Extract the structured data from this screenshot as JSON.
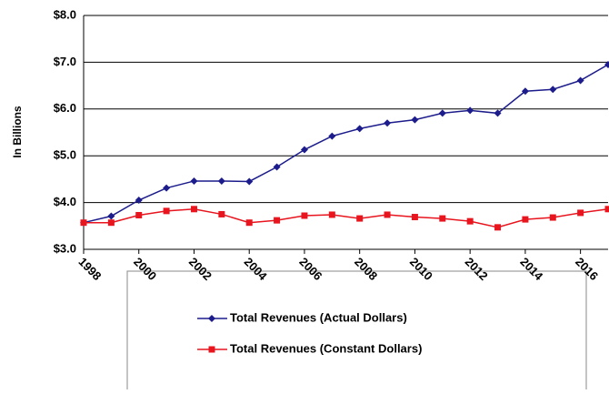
{
  "chart_data": {
    "type": "line",
    "y_label": "In Billions",
    "x": [
      1998,
      1999,
      2000,
      2001,
      2002,
      2003,
      2004,
      2005,
      2006,
      2007,
      2008,
      2009,
      2010,
      2011,
      2012,
      2013,
      2014,
      2015,
      2016,
      2017
    ],
    "xlim": [
      1998,
      2017
    ],
    "xticks": [
      1998,
      2000,
      2002,
      2004,
      2006,
      2008,
      2010,
      2012,
      2014,
      2016
    ],
    "ylim": [
      3,
      8
    ],
    "yticks": [
      {
        "value": 3,
        "label": "$3.0"
      },
      {
        "value": 4,
        "label": "$4.0"
      },
      {
        "value": 5,
        "label": "$5.0"
      },
      {
        "value": 6,
        "label": "$6.0"
      },
      {
        "value": 7,
        "label": "$7.0"
      },
      {
        "value": 8,
        "label": "$8.0"
      }
    ],
    "grid": true,
    "legend": "bottom",
    "series": [
      {
        "name": "Total Revenues (Actual Dollars)",
        "color": "#1c1c8c",
        "marker": "diamond",
        "values": [
          3.57,
          3.71,
          4.05,
          4.31,
          4.46,
          4.46,
          4.45,
          4.76,
          5.13,
          5.42,
          5.58,
          5.7,
          5.77,
          5.91,
          5.97,
          5.91,
          6.38,
          6.42,
          6.61,
          6.95
        ]
      },
      {
        "name": "Total Revenues (Constant Dollars)",
        "color": "#e8141e",
        "marker": "square",
        "values": [
          3.57,
          3.57,
          3.73,
          3.82,
          3.86,
          3.75,
          3.57,
          3.62,
          3.72,
          3.74,
          3.66,
          3.74,
          3.69,
          3.66,
          3.6,
          3.47,
          3.64,
          3.68,
          3.78,
          3.86
        ]
      }
    ]
  }
}
